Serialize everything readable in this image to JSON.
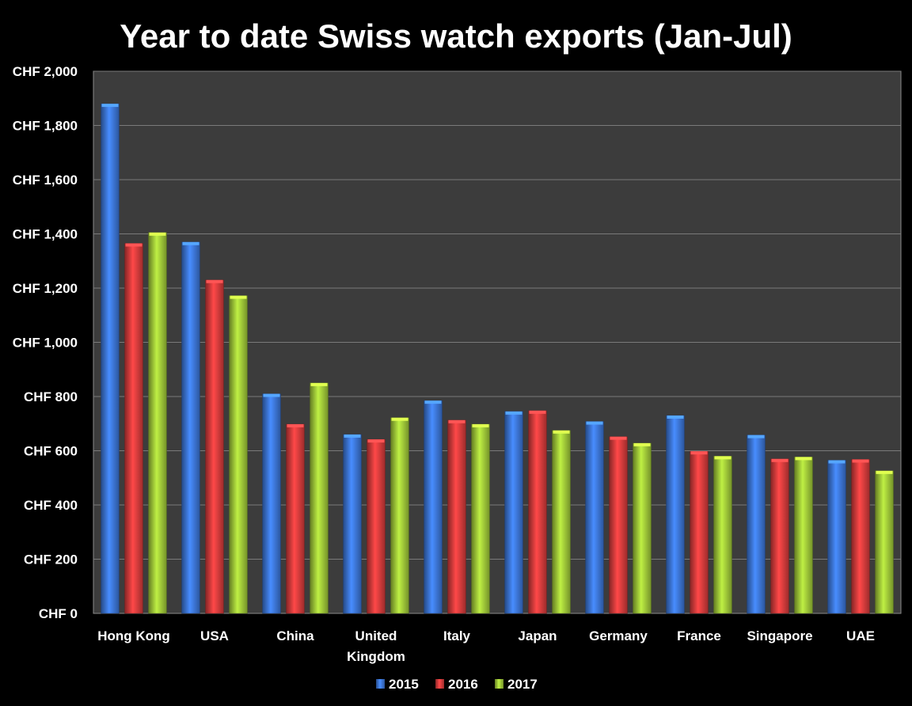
{
  "chart_data": {
    "type": "bar",
    "title": "Year to date Swiss watch exports (Jan-Jul)",
    "xlabel": "",
    "ylabel": "",
    "ylim": [
      0,
      2000
    ],
    "y_ticks": [
      0,
      200,
      400,
      600,
      800,
      1000,
      1200,
      1400,
      1600,
      1800,
      2000
    ],
    "y_tick_labels": [
      "CHF 0",
      "CHF 200",
      "CHF 400",
      "CHF 600",
      "CHF 800",
      "CHF 1,000",
      "CHF 1,200",
      "CHF 1,400",
      "CHF 1,600",
      "CHF 1,800",
      "CHF 2,000"
    ],
    "grid": true,
    "legend_position": "bottom",
    "categories": [
      "Hong Kong",
      "USA",
      "China",
      "United Kingdom",
      "Italy",
      "Japan",
      "Germany",
      "France",
      "Singapore",
      "UAE"
    ],
    "category_lines": [
      [
        "Hong Kong"
      ],
      [
        "USA"
      ],
      [
        "China"
      ],
      [
        "United",
        "Kingdom"
      ],
      [
        "Italy"
      ],
      [
        "Japan"
      ],
      [
        "Germany"
      ],
      [
        "France"
      ],
      [
        "Singapore"
      ],
      [
        "UAE"
      ]
    ],
    "series": [
      {
        "name": "2015",
        "color": "#3f7be0",
        "values": [
          1880,
          1370,
          810,
          660,
          785,
          745,
          708,
          730,
          658,
          565
        ]
      },
      {
        "name": "2016",
        "color": "#e03f3f",
        "values": [
          1365,
          1230,
          698,
          642,
          713,
          748,
          652,
          598,
          570,
          568
        ]
      },
      {
        "name": "2017",
        "color": "#a6d13b",
        "values": [
          1405,
          1172,
          850,
          722,
          698,
          675,
          628,
          580,
          577,
          526
        ]
      }
    ],
    "colors": {
      "background": "#000000",
      "plot_area": "#3c3c3c",
      "gridline": "#7a7a7a",
      "text": "#ffffff"
    }
  }
}
